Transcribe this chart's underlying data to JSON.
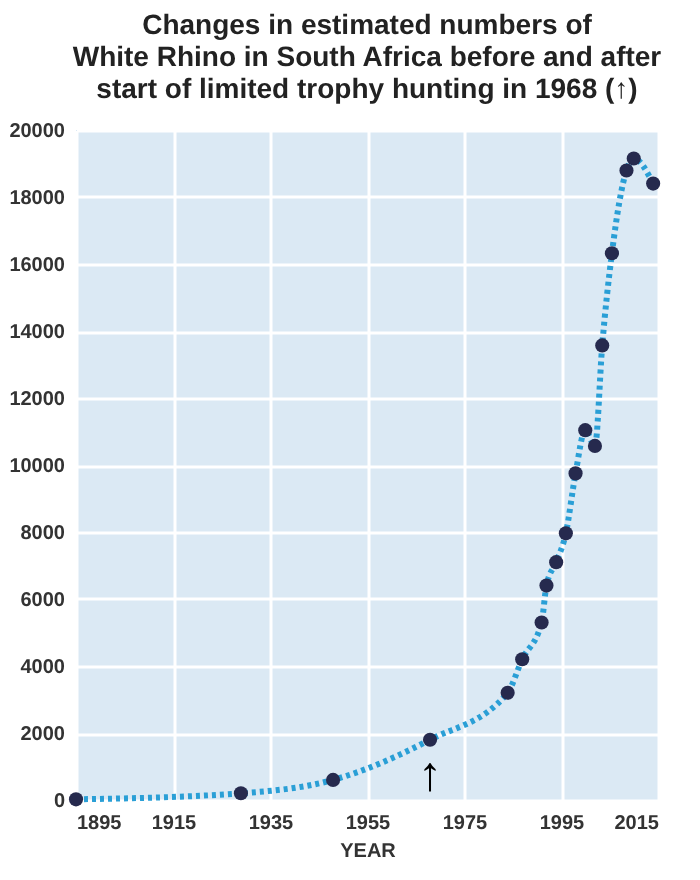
{
  "chart_data": {
    "type": "scatter",
    "title": "Changes in estimated numbers of\nWhite Rhino in South Africa before and after\nstart of limited trophy hunting in 1968 (↑)",
    "xlabel": "YEAR",
    "x": [
      1895,
      1929,
      1948,
      1968,
      1984,
      1987,
      1991,
      1992,
      1994,
      1996,
      1998,
      2000,
      2002,
      2003.5,
      2005.5,
      2008.5,
      2010,
      2014
    ],
    "series": [
      {
        "type": "line",
        "color": "#2a9fd6",
        "line_style": "dotted",
        "marker": "none",
        "values": [
          20,
          200,
          600,
          1800,
          3200,
          4200,
          5300,
          6400,
          7100,
          7960,
          9750,
          11040,
          10570,
          13570,
          16320,
          18790,
          19150,
          18400
        ]
      },
      {
        "color": "#262a4e",
        "marker": "circle",
        "values": [
          20,
          200,
          600,
          1800,
          3200,
          4200,
          5300,
          6400,
          7100,
          7960,
          9750,
          11040,
          10570,
          13570,
          16320,
          18790,
          19150,
          18400
        ]
      }
    ],
    "xlim": [
      1895,
      2015
    ],
    "xticks": [
      1895,
      1915,
      1935,
      1955,
      1975,
      1995,
      2015
    ],
    "ylim": [
      0,
      20000
    ],
    "yticks": [
      0,
      2000,
      4000,
      6000,
      8000,
      10000,
      12000,
      14000,
      16000,
      18000,
      20000
    ],
    "grid": true,
    "annotations": [
      {
        "text": "↑",
        "x": 1968,
        "y": 1800
      }
    ]
  }
}
